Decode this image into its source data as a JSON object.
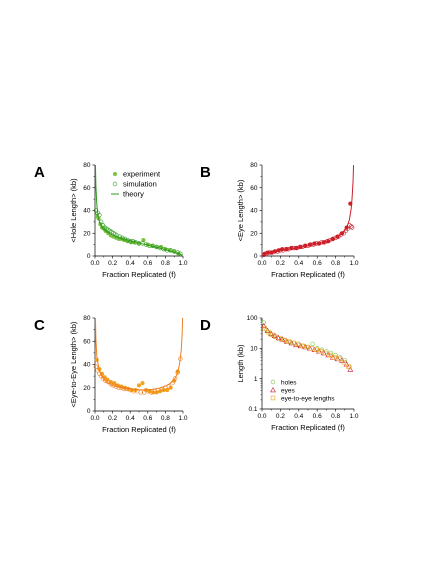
{
  "colors": {
    "green": "#2f9a1f",
    "green_light": "#7cc242",
    "red": "#cc1f2a",
    "orange": "#f07f22",
    "orange_light": "#f2a21c",
    "axis": "#000000"
  },
  "chart_data": [
    {
      "panel": "A",
      "type": "scatter",
      "xlabel": "Fraction Replicated (f)",
      "ylabel": "<Hole Length> (kb)",
      "xlim": [
        0,
        1.0
      ],
      "ylim": [
        0,
        80
      ],
      "xticks": [
        "0.0",
        "0.2",
        "0.4",
        "0.6",
        "0.8",
        "1.0"
      ],
      "yticks": [
        "0",
        "20",
        "40",
        "60",
        "80"
      ],
      "legend": [
        "experiment",
        "simulation",
        "theory"
      ],
      "legend_position": "top-right",
      "series": [
        {
          "name": "experiment",
          "style": "filled-circle",
          "color": "green_light",
          "x": [
            0.02,
            0.04,
            0.06,
            0.08,
            0.1,
            0.12,
            0.15,
            0.18,
            0.21,
            0.24,
            0.27,
            0.3,
            0.33,
            0.37,
            0.41,
            0.45,
            0.5,
            0.55,
            0.6,
            0.65,
            0.7,
            0.75,
            0.8,
            0.85,
            0.9,
            0.95
          ],
          "y": [
            35,
            33,
            28,
            25,
            24,
            22,
            20,
            18,
            17,
            16,
            15,
            15,
            14,
            13,
            12,
            12,
            11,
            14,
            10,
            9,
            8,
            8,
            6,
            5,
            4,
            2
          ]
        },
        {
          "name": "simulation",
          "style": "open-circle",
          "color": "green",
          "x": [
            0.01,
            0.03,
            0.05,
            0.07,
            0.09,
            0.11,
            0.13,
            0.15,
            0.17,
            0.19,
            0.21,
            0.23,
            0.25,
            0.28,
            0.31,
            0.34,
            0.37,
            0.4,
            0.43,
            0.46,
            0.5,
            0.54,
            0.58,
            0.62,
            0.66,
            0.7,
            0.74,
            0.78,
            0.82,
            0.86,
            0.9,
            0.94,
            0.97
          ],
          "y": [
            40,
            38,
            36,
            30,
            27,
            25,
            24,
            23,
            22,
            21,
            20,
            19,
            18,
            17,
            16,
            15,
            14,
            13,
            13,
            12,
            11,
            11,
            10,
            9,
            9,
            8,
            7,
            6,
            5,
            5,
            4,
            3,
            2
          ]
        },
        {
          "name": "theory",
          "style": "line",
          "color": "green",
          "x": [
            0.005,
            0.01,
            0.02,
            0.03,
            0.05,
            0.08,
            0.12,
            0.16,
            0.2,
            0.25,
            0.3,
            0.35,
            0.4,
            0.45,
            0.5,
            0.55,
            0.6,
            0.65,
            0.7,
            0.75,
            0.8,
            0.85,
            0.9,
            0.95,
            0.99
          ],
          "y": [
            80,
            62,
            46,
            38,
            30,
            25,
            22,
            20,
            18.5,
            17,
            15.5,
            14.5,
            13.5,
            12.5,
            11.5,
            10.5,
            9.6,
            8.6,
            7.6,
            6.6,
            5.6,
            4.5,
            3.4,
            2.1,
            0.8
          ]
        }
      ]
    },
    {
      "panel": "B",
      "type": "scatter",
      "xlabel": "Fraction Replicated (f)",
      "ylabel": "<Eye Length> (kb)",
      "xlim": [
        0,
        1.0
      ],
      "ylim": [
        0,
        80
      ],
      "xticks": [
        "0.0",
        "0.2",
        "0.4",
        "0.6",
        "0.8",
        "1.0"
      ],
      "yticks": [
        "0",
        "20",
        "40",
        "60",
        "80"
      ],
      "series": [
        {
          "name": "experiment",
          "style": "filled-circle",
          "color": "red",
          "x": [
            0.03,
            0.06,
            0.1,
            0.14,
            0.18,
            0.22,
            0.27,
            0.32,
            0.37,
            0.42,
            0.47,
            0.52,
            0.57,
            0.62,
            0.67,
            0.72,
            0.77,
            0.82,
            0.87,
            0.92,
            0.96
          ],
          "y": [
            2,
            3,
            3,
            4,
            5,
            6,
            6,
            7,
            7,
            8,
            9,
            10,
            11,
            11,
            12,
            13,
            15,
            17,
            20,
            25,
            46
          ]
        },
        {
          "name": "simulation",
          "style": "open-circle",
          "color": "red",
          "x": [
            0.02,
            0.05,
            0.08,
            0.11,
            0.14,
            0.17,
            0.2,
            0.23,
            0.26,
            0.29,
            0.32,
            0.35,
            0.38,
            0.41,
            0.44,
            0.47,
            0.5,
            0.53,
            0.56,
            0.59,
            0.62,
            0.65,
            0.68,
            0.71,
            0.74,
            0.77,
            0.8,
            0.83,
            0.86,
            0.89,
            0.91,
            0.93,
            0.95,
            0.97,
            0.98
          ],
          "y": [
            1,
            2,
            3,
            3,
            4,
            4,
            5,
            5,
            6,
            6,
            7,
            7,
            7,
            8,
            8,
            9,
            9,
            10,
            10,
            11,
            11,
            12,
            12,
            13,
            14,
            15,
            16,
            17,
            19,
            20,
            22,
            24,
            27,
            26,
            25
          ]
        },
        {
          "name": "theory",
          "style": "line",
          "color": "red",
          "x": [
            0.0,
            0.05,
            0.1,
            0.15,
            0.2,
            0.25,
            0.3,
            0.35,
            0.4,
            0.45,
            0.5,
            0.55,
            0.6,
            0.65,
            0.7,
            0.75,
            0.8,
            0.85,
            0.9,
            0.93,
            0.95,
            0.97,
            0.98,
            0.99,
            0.995
          ],
          "y": [
            0.5,
            2,
            3,
            3.8,
            4.6,
            5.3,
            6,
            6.7,
            7.4,
            8.1,
            8.9,
            9.7,
            10.6,
            11.6,
            12.8,
            14.2,
            16,
            18.5,
            22.5,
            27,
            32,
            42,
            52,
            66,
            80
          ]
        }
      ]
    },
    {
      "panel": "C",
      "type": "scatter",
      "xlabel": "Fraction Replicated (f)",
      "ylabel": "<Eye-to-Eye Length> (kb)",
      "xlim": [
        0,
        1.0
      ],
      "ylim": [
        0,
        80
      ],
      "xticks": [
        "0.0",
        "0.2",
        "0.4",
        "0.6",
        "0.8",
        "1.0"
      ],
      "yticks": [
        "0",
        "20",
        "40",
        "60",
        "80"
      ],
      "series": [
        {
          "name": "experiment",
          "style": "filled-circle",
          "color": "orange_light",
          "x": [
            0.02,
            0.05,
            0.08,
            0.11,
            0.14,
            0.18,
            0.22,
            0.26,
            0.3,
            0.34,
            0.38,
            0.42,
            0.46,
            0.5,
            0.54,
            0.58,
            0.62,
            0.66,
            0.7,
            0.74,
            0.78,
            0.82,
            0.86,
            0.9,
            0.94
          ],
          "y": [
            44,
            36,
            32,
            29,
            27,
            25,
            24,
            22,
            21,
            20,
            19,
            18,
            18,
            22,
            24,
            18,
            17,
            16,
            16,
            17,
            18,
            18,
            20,
            26,
            34
          ]
        },
        {
          "name": "simulation",
          "style": "open-circle",
          "color": "orange",
          "x": [
            0.01,
            0.03,
            0.05,
            0.07,
            0.09,
            0.12,
            0.15,
            0.18,
            0.21,
            0.24,
            0.27,
            0.3,
            0.33,
            0.36,
            0.4,
            0.44,
            0.48,
            0.52,
            0.56,
            0.6,
            0.64,
            0.68,
            0.72,
            0.76,
            0.8,
            0.84,
            0.88,
            0.91,
            0.94,
            0.97
          ],
          "y": [
            38,
            35,
            32,
            30,
            28,
            26,
            25,
            23,
            22,
            21,
            20,
            20,
            19,
            19,
            18,
            17,
            17,
            16,
            16,
            17,
            16,
            17,
            18,
            19,
            20,
            21,
            24,
            28,
            33,
            45
          ]
        },
        {
          "name": "theory",
          "style": "line",
          "color": "orange",
          "x": [
            0.005,
            0.01,
            0.02,
            0.04,
            0.07,
            0.1,
            0.15,
            0.2,
            0.25,
            0.3,
            0.35,
            0.4,
            0.45,
            0.5,
            0.55,
            0.6,
            0.65,
            0.7,
            0.75,
            0.8,
            0.85,
            0.9,
            0.93,
            0.96,
            0.98,
            0.99,
            0.995
          ],
          "y": [
            80,
            62,
            48,
            38,
            31,
            27,
            24,
            22,
            21,
            20,
            19.5,
            19,
            18.6,
            18.3,
            18.2,
            18.3,
            18.6,
            19.2,
            20,
            21.5,
            23.5,
            27,
            31,
            40,
            52,
            66,
            80
          ]
        }
      ]
    },
    {
      "panel": "D",
      "type": "scatter",
      "xlabel": "Fraction Replicated (f)",
      "ylabel": "Length (kb)",
      "xlim": [
        0,
        1.0
      ],
      "ylim": [
        0.1,
        100
      ],
      "yscale": "log",
      "xticks": [
        "0.0",
        "0.2",
        "0.4",
        "0.6",
        "0.8",
        "1.0"
      ],
      "yticks": [
        "0.1",
        "1",
        "10",
        "100"
      ],
      "legend": [
        "holes",
        "eyes",
        "eye-to-eye lengths"
      ],
      "legend_position": "bottom-left",
      "series": [
        {
          "name": "holes",
          "style": "open-circle",
          "color": "green_light",
          "x": [
            0.02,
            0.05,
            0.09,
            0.13,
            0.17,
            0.21,
            0.25,
            0.3,
            0.35,
            0.4,
            0.45,
            0.5,
            0.55,
            0.6,
            0.65,
            0.7,
            0.75,
            0.8,
            0.85,
            0.9,
            0.95
          ],
          "y": [
            70,
            40,
            30,
            25,
            22,
            20,
            18,
            16,
            15,
            13,
            12,
            11,
            14,
            10,
            9,
            8,
            7,
            6,
            5,
            4,
            2.5
          ]
        },
        {
          "name": "eyes",
          "style": "open-triangle",
          "color": "red",
          "x": [
            0.02,
            0.06,
            0.1,
            0.14,
            0.18,
            0.22,
            0.27,
            0.32,
            0.37,
            0.42,
            0.47,
            0.52,
            0.57,
            0.62,
            0.67,
            0.72,
            0.77,
            0.82,
            0.87,
            0.92,
            0.96
          ],
          "y": [
            55,
            38,
            30,
            26,
            22,
            20,
            17,
            15,
            13,
            12,
            11,
            10,
            9,
            8,
            7,
            6,
            5,
            4.5,
            4,
            3,
            2
          ]
        },
        {
          "name": "eye-to-eye lengths",
          "style": "open-square",
          "color": "orange_light",
          "x": [
            0.03,
            0.07,
            0.11,
            0.15,
            0.19,
            0.24,
            0.29,
            0.34,
            0.39,
            0.44,
            0.49,
            0.54,
            0.59,
            0.64,
            0.69,
            0.74,
            0.79,
            0.84,
            0.89,
            0.94
          ],
          "y": [
            45,
            34,
            28,
            24,
            21,
            19,
            17,
            15,
            14,
            12,
            11,
            10,
            9,
            8,
            7,
            6,
            5,
            4.5,
            3.5,
            2.5
          ]
        }
      ]
    }
  ]
}
